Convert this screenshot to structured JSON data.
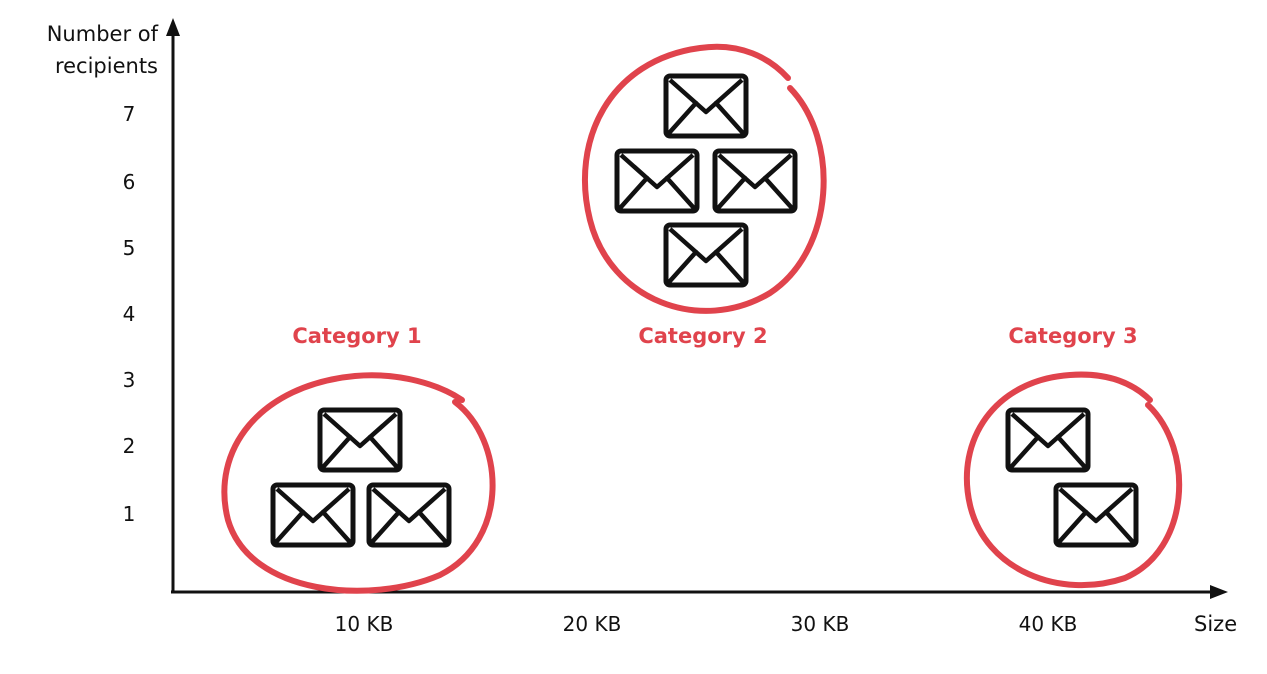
{
  "axes": {
    "y_title_lines": [
      "Number of",
      "recipients"
    ],
    "y_ticks": [
      "1",
      "2",
      "3",
      "4",
      "5",
      "6",
      "7"
    ],
    "x_ticks": [
      "10 KB",
      "20 KB",
      "30 KB",
      "40 KB"
    ],
    "x_title": "Size"
  },
  "categories": [
    {
      "label": "Category 1",
      "envelope_count": 3
    },
    {
      "label": "Category 2",
      "envelope_count": 4
    },
    {
      "label": "Category 3",
      "envelope_count": 2
    }
  ],
  "colors": {
    "accent": "#e0434c",
    "ink": "#111111"
  },
  "icons": [
    "envelope-icon"
  ]
}
